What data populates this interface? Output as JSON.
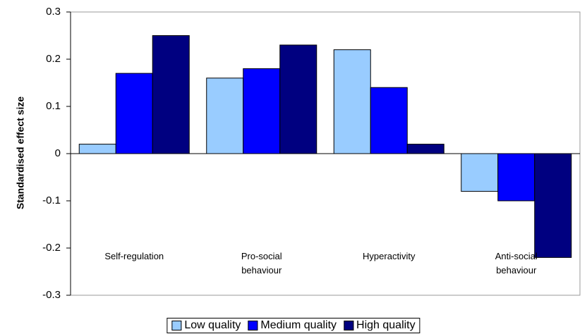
{
  "chart_data": {
    "type": "bar",
    "y_label": "Standardised effect size",
    "categories": [
      "Self-regulation",
      "Pro-social behaviour",
      "Hyperactivity",
      "Anti-social behaviour"
    ],
    "series": [
      {
        "name": "Low quality",
        "color": "#99ccff",
        "values": [
          0.02,
          0.16,
          0.22,
          -0.08
        ]
      },
      {
        "name": "Medium quality",
        "color": "#0000ff",
        "values": [
          0.17,
          0.18,
          0.14,
          -0.1
        ]
      },
      {
        "name": "High quality",
        "color": "#000080",
        "values": [
          0.25,
          0.23,
          0.02,
          -0.22
        ]
      }
    ],
    "ylim": [
      -0.3,
      0.3
    ],
    "yticks": [
      -0.3,
      -0.2,
      -0.1,
      0,
      0.1,
      0.2,
      0.3
    ],
    "legend": "bottom"
  }
}
